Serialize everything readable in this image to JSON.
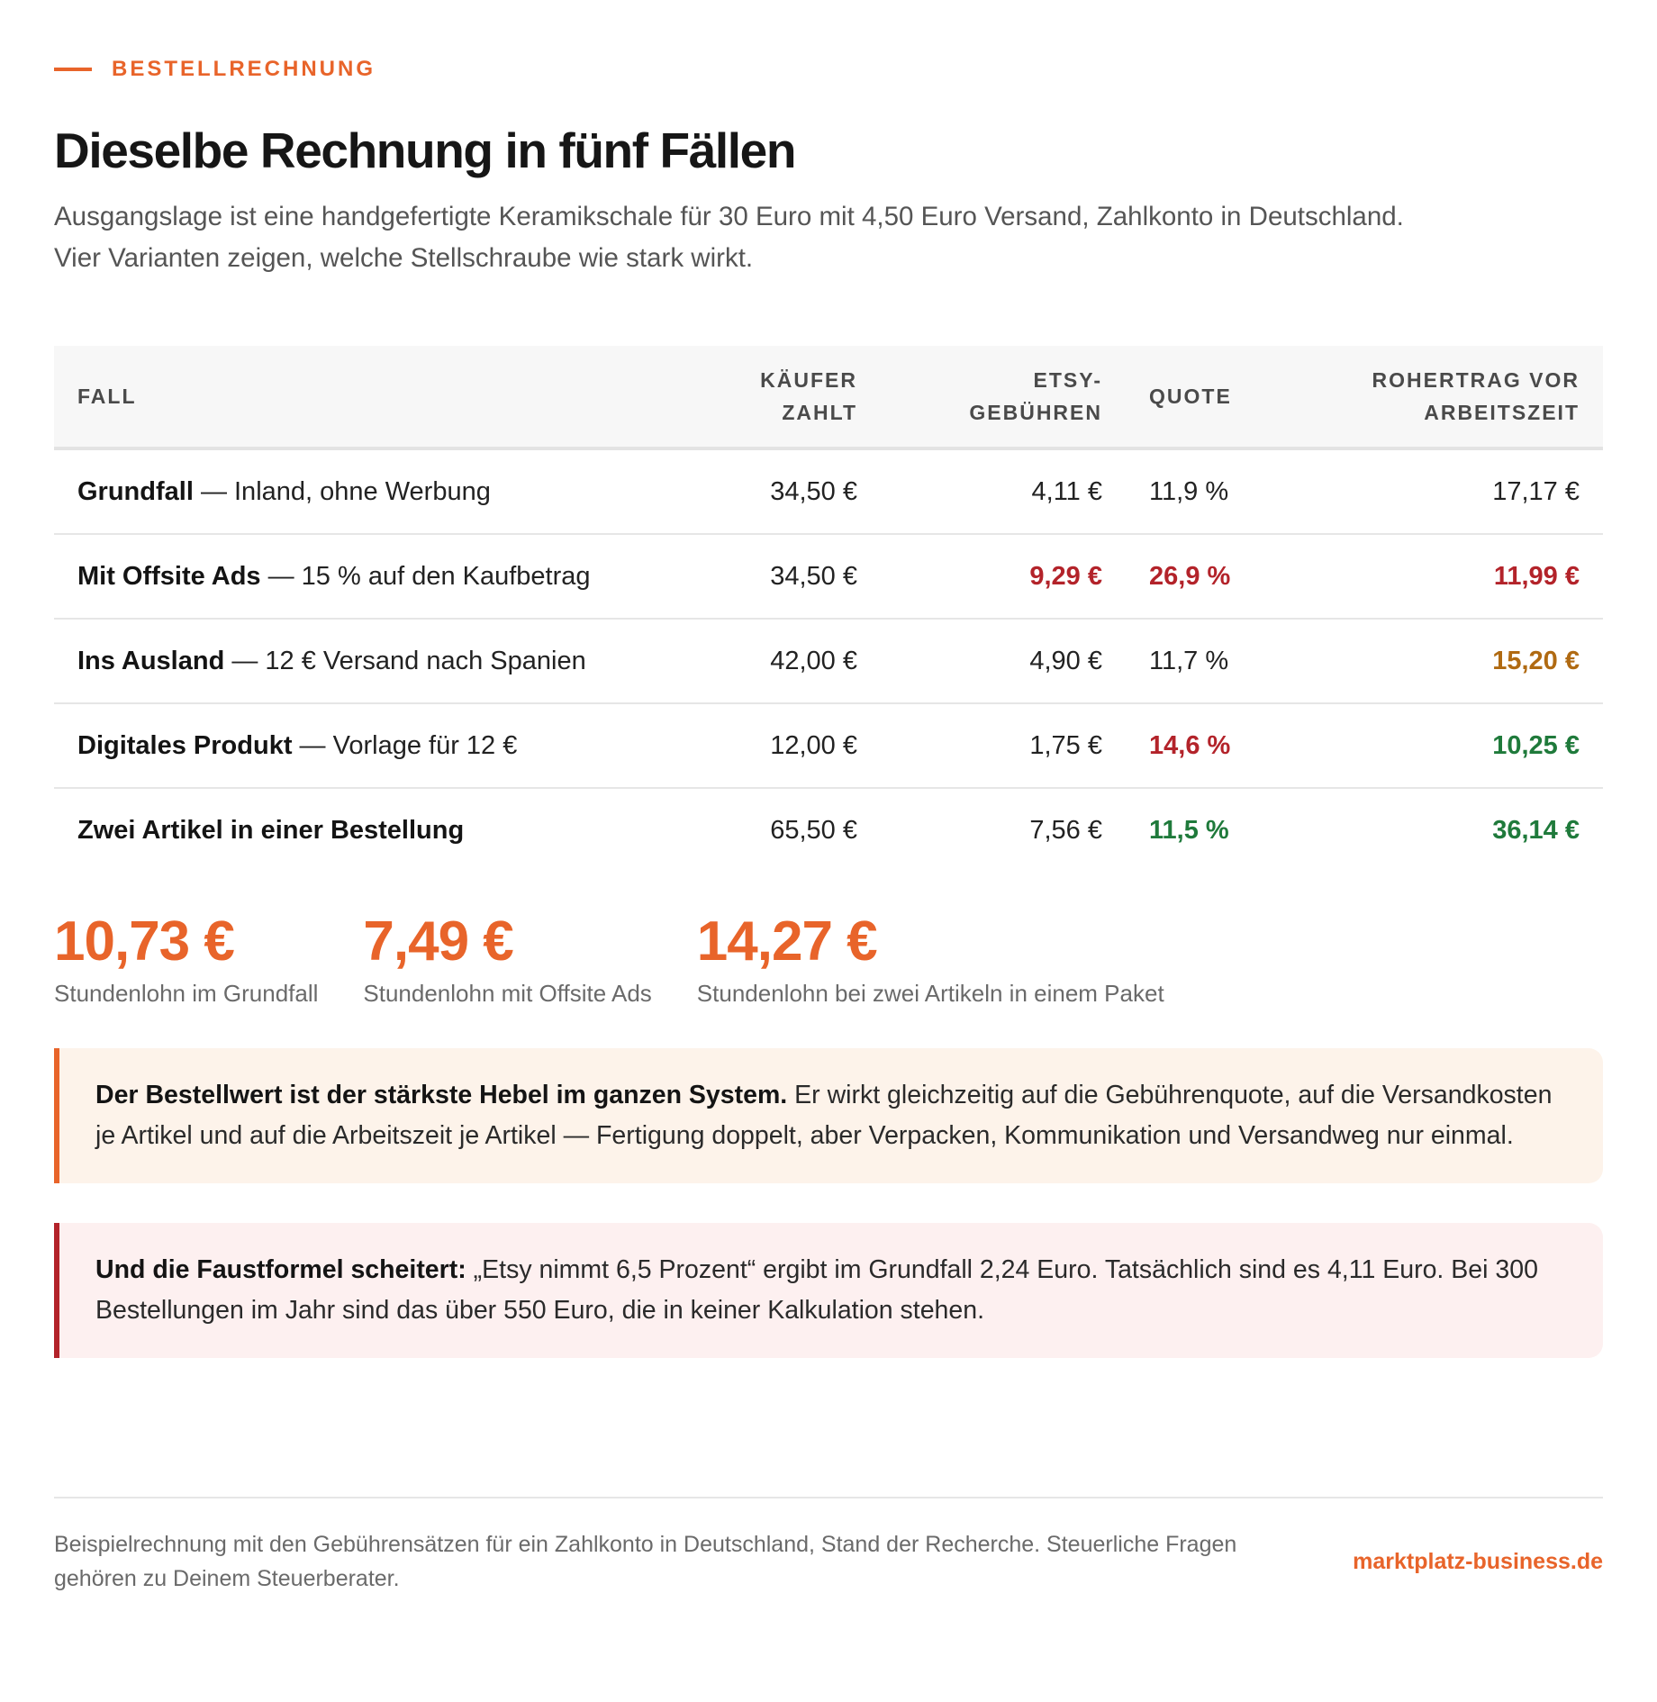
{
  "header": {
    "eyebrow": "BESTELLRECHNUNG",
    "title": "Dieselbe Rechnung in fünf Fällen",
    "intro": "Ausgangslage ist eine handgefertigte Keramikschale für 30 Euro mit 4,50 Euro Versand, Zahlkonto in Deutschland. Vier Varianten zeigen, welche Stellschraube wie stark wirkt."
  },
  "table": {
    "columns": {
      "fall": "FALL",
      "kaeufer": "KÄUFER ZAHLT",
      "etsy": "ETSY-GEBÜHREN",
      "quote": "QUOTE",
      "rohertrag": "ROHERTRAG VOR ARBEITSZEIT"
    },
    "rows": [
      {
        "name": "Grundfall",
        "detail": " — Inland, ohne Werbung",
        "kaeufer": "34,50 €",
        "etsy": "4,11 €",
        "quote": "11,9 %",
        "rohertrag": "17,17 €"
      },
      {
        "name": "Mit Offsite Ads",
        "detail": " — 15 % auf den Kaufbetrag",
        "kaeufer": "34,50 €",
        "etsy": "9,29 €",
        "quote": "26,9 %",
        "rohertrag": "11,99 €"
      },
      {
        "name": "Ins Ausland",
        "detail": " — 12 € Versand nach Spanien",
        "kaeufer": "42,00 €",
        "etsy": "4,90 €",
        "quote": "11,7 %",
        "rohertrag": "15,20 €"
      },
      {
        "name": "Digitales Produkt",
        "detail": " — Vorlage für 12 €",
        "kaeufer": "12,00 €",
        "etsy": "1,75 €",
        "quote": "14,6 %",
        "rohertrag": "10,25 €"
      },
      {
        "name": "Zwei Artikel in einer Bestellung",
        "detail": "",
        "kaeufer": "65,50 €",
        "etsy": "7,56 €",
        "quote": "11,5 %",
        "rohertrag": "36,14 €"
      }
    ]
  },
  "stats": [
    {
      "value": "10,73 €",
      "label": "Stundenlohn im Grundfall"
    },
    {
      "value": "7,49 €",
      "label": "Stundenlohn mit Offsite Ads"
    },
    {
      "value": "14,27 €",
      "label": "Stundenlohn bei zwei Artikeln in einem Paket"
    }
  ],
  "callouts": {
    "lever": {
      "lead": "Der Bestellwert ist der stärkste Hebel im ganzen System.",
      "text": " Er wirkt gleichzeitig auf die Gebührenquote, auf die Versandkosten je Artikel und auf die Arbeitszeit je Artikel — Fertigung doppelt, aber Verpacken, Kommunikation und Versandweg nur einmal."
    },
    "formula": {
      "lead": "Und die Faustformel scheitert:",
      "text": " „Etsy nimmt 6,5 Prozent“ ergibt im Grundfall 2,24 Euro. Tatsächlich sind es 4,11 Euro. Bei 300 Bestellungen im Jahr sind das über 550 Euro, die in keiner Kalkulation stehen."
    }
  },
  "footer": {
    "note": "Beispielrechnung mit den Gebührensätzen für ein Zahlkonto in Deutschland, Stand der Recherche. Steuerliche Fragen gehören zu Deinem Steuerberater.",
    "brand": "marktplatz-business.de"
  },
  "colors": {
    "accent": "#e8642a",
    "negative": "#b3232a",
    "warning": "#b06a12",
    "positive": "#1f7a3b"
  }
}
